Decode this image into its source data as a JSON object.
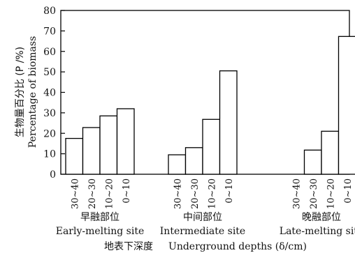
{
  "chart_data": {
    "type": "bar",
    "y_ticks": [
      0,
      10,
      20,
      30,
      40,
      50,
      60,
      70,
      80
    ],
    "ylim": [
      0,
      80
    ],
    "categories": [
      "30~40",
      "20~30",
      "10~20",
      "0~10"
    ],
    "groups": [
      {
        "name_zh": "早融部位",
        "name_en": "Early-melting site",
        "values": [
          17.5,
          22.8,
          28.5,
          32
        ]
      },
      {
        "name_zh": "中间部位",
        "name_en": "Intermediate site",
        "values": [
          9.5,
          13,
          26.8,
          50.5
        ]
      },
      {
        "name_zh": "晚融部位",
        "name_en": "Late-melting site",
        "values": [
          0,
          11.8,
          21,
          67.3
        ]
      }
    ],
    "ylabel_zh": "生物量百分比 (P /%)",
    "ylabel_en": "Percentage of biomass",
    "xlabel_zh": "地表下深度",
    "xlabel_en": "Underground depths (δ/cm)",
    "grid": false
  }
}
